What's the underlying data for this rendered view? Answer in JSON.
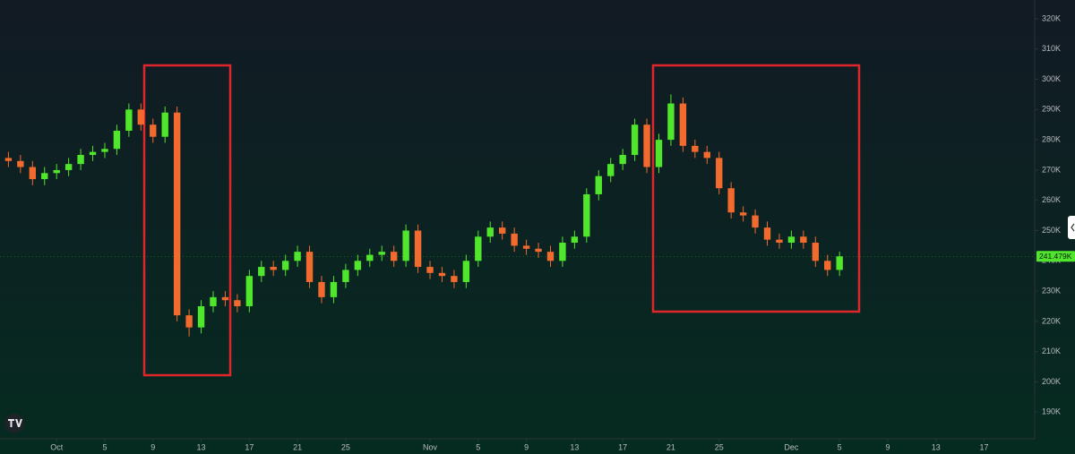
{
  "chart_data": {
    "type": "candlestick",
    "x": [
      -3,
      -2,
      -1,
      0,
      1,
      2,
      3,
      4,
      5,
      6,
      7,
      8,
      9,
      10,
      11,
      12,
      13,
      14,
      15,
      16,
      17,
      18,
      19,
      20,
      21,
      22,
      23,
      24,
      25,
      26,
      27,
      28,
      29,
      30,
      31,
      32,
      33,
      34,
      35,
      36,
      37,
      38,
      39,
      40,
      41,
      42,
      43,
      44,
      45,
      46,
      47,
      48,
      49,
      50,
      51,
      52,
      53,
      54,
      55,
      56,
      57,
      58,
      59,
      60,
      61,
      62,
      63,
      64,
      65,
      66
    ],
    "open": [
      274,
      273,
      271,
      267,
      269,
      270,
      272,
      275,
      276,
      277,
      283,
      290,
      285,
      281,
      289,
      222,
      218,
      225,
      228,
      227,
      225,
      235,
      238,
      237,
      240,
      243,
      233,
      228,
      233,
      237,
      240,
      242,
      243,
      240,
      250,
      238,
      236,
      235,
      233,
      240,
      248,
      251,
      249,
      245,
      244,
      243,
      240,
      246,
      248,
      262,
      268,
      272,
      275,
      285,
      271,
      280,
      292,
      278,
      276,
      274,
      264,
      256,
      255,
      251,
      247,
      246,
      248,
      246,
      240,
      237
    ],
    "high": [
      276,
      275,
      273,
      271,
      272,
      274,
      277,
      278,
      279,
      285,
      292,
      292,
      287,
      291,
      291,
      224,
      227,
      230,
      230,
      229,
      237,
      240,
      240,
      242,
      245,
      245,
      235,
      235,
      239,
      242,
      244,
      245,
      245,
      252,
      252,
      240,
      238,
      237,
      242,
      250,
      253,
      253,
      251,
      247,
      246,
      245,
      248,
      250,
      264,
      270,
      274,
      277,
      287,
      287,
      282,
      295,
      294,
      280,
      278,
      276,
      266,
      258,
      257,
      253,
      249,
      250,
      250,
      248,
      242,
      243
    ],
    "low": [
      271,
      269,
      265,
      265,
      267,
      268,
      270,
      273,
      274,
      275,
      281,
      283,
      279,
      279,
      220,
      215,
      216,
      223,
      225,
      223,
      223,
      233,
      235,
      235,
      238,
      231,
      226,
      226,
      231,
      235,
      238,
      240,
      238,
      238,
      236,
      234,
      233,
      231,
      231,
      238,
      246,
      247,
      243,
      242,
      241,
      238,
      238,
      244,
      246,
      260,
      266,
      270,
      273,
      269,
      269,
      278,
      276,
      274,
      272,
      262,
      254,
      253,
      249,
      245,
      244,
      244,
      244,
      238,
      235,
      235
    ],
    "close": [
      273,
      271,
      267,
      269,
      270,
      272,
      275,
      276,
      277,
      283,
      290,
      285,
      281,
      289,
      222,
      218,
      225,
      228,
      227,
      225,
      235,
      238,
      237,
      240,
      243,
      233,
      228,
      233,
      237,
      240,
      242,
      243,
      240,
      250,
      238,
      236,
      235,
      233,
      240,
      248,
      251,
      249,
      245,
      244,
      243,
      240,
      246,
      248,
      262,
      268,
      272,
      275,
      285,
      271,
      280,
      292,
      278,
      276,
      274,
      264,
      256,
      255,
      251,
      247,
      246,
      248,
      246,
      240,
      237,
      241.479
    ],
    "up_color": "#4fe62c",
    "down_color": "#f26a2e",
    "current_price": {
      "value": 241.479,
      "label": "241.479K"
    },
    "xlim": [
      -3.7,
      82.2
    ],
    "xticks": [
      {
        "value": 1,
        "label": "Oct"
      },
      5,
      9,
      13,
      17,
      21,
      25,
      {
        "value": 32,
        "label": "Nov"
      },
      {
        "value": 36,
        "label": "5"
      },
      {
        "value": 40,
        "label": "9"
      },
      {
        "value": 44,
        "label": "13"
      },
      {
        "value": 48,
        "label": "17"
      },
      {
        "value": 52,
        "label": "21"
      },
      {
        "value": 56,
        "label": "25"
      },
      {
        "value": 62,
        "label": "Dec"
      },
      {
        "value": 66,
        "label": "5"
      },
      {
        "value": 70,
        "label": "9"
      },
      {
        "value": 74,
        "label": "13"
      },
      {
        "value": 78,
        "label": "17"
      }
    ],
    "ylim": [
      181.2,
      326.2
    ],
    "yticks": [
      {
        "value": 190,
        "label": "190K"
      },
      {
        "value": 200,
        "label": "200K"
      },
      {
        "value": 210,
        "label": "210K"
      },
      {
        "value": 220,
        "label": "220K"
      },
      {
        "value": 230,
        "label": "230K"
      },
      {
        "value": 240,
        "label": "240K"
      },
      {
        "value": 250,
        "label": "250K"
      },
      {
        "value": 260,
        "label": "260K"
      },
      {
        "value": 270,
        "label": "270K"
      },
      {
        "value": 280,
        "label": "280K"
      },
      {
        "value": 290,
        "label": "290K"
      },
      {
        "value": 300,
        "label": "300K"
      },
      {
        "value": 310,
        "label": "310K"
      },
      {
        "value": 320,
        "label": "320K"
      }
    ],
    "grid": false
  }
}
